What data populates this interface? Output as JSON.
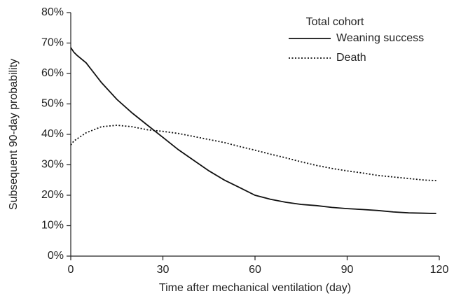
{
  "chart_data": {
    "type": "line",
    "x_label": "Time after mechanical ventilation (day)",
    "y_label": "Subsequent 90-day probability",
    "legend_title": "Total cohort",
    "legend_position": "upper right",
    "x": [
      0,
      1,
      2,
      5,
      10,
      15,
      20,
      25,
      30,
      35,
      40,
      45,
      50,
      55,
      60,
      65,
      70,
      75,
      80,
      85,
      90,
      95,
      100,
      105,
      110,
      115,
      119
    ],
    "series": [
      {
        "name": "Weaning success",
        "color": "#111111",
        "dash": "solid",
        "values": [
          68.5,
          67,
          66,
          63.5,
          57,
          51.5,
          47,
          43,
          39,
          35,
          31.5,
          28,
          25,
          22.5,
          20,
          18.7,
          17.7,
          17,
          16.6,
          16,
          15.6,
          15.3,
          15,
          14.5,
          14.2,
          14.1,
          14
        ]
      },
      {
        "name": "Death",
        "color": "#111111",
        "dash": "dotted",
        "values": [
          36.5,
          37.8,
          38.5,
          40.5,
          42.5,
          43,
          42.5,
          41.5,
          41,
          40.3,
          39.3,
          38.3,
          37.3,
          36,
          34.8,
          33.5,
          32.3,
          31,
          29.8,
          28.8,
          28,
          27.3,
          26.5,
          26,
          25.5,
          25,
          24.8
        ]
      }
    ],
    "xlim": [
      0,
      120
    ],
    "xticks": [
      0,
      30,
      60,
      90,
      120
    ],
    "ylim": [
      0,
      80
    ],
    "yticks": [
      {
        "value": 0,
        "label": "0%"
      },
      {
        "value": 10,
        "label": "10%"
      },
      {
        "value": 20,
        "label": "20%"
      },
      {
        "value": 30,
        "label": "30%"
      },
      {
        "value": 40,
        "label": "40%"
      },
      {
        "value": 50,
        "label": "50%"
      },
      {
        "value": 60,
        "label": "60%"
      },
      {
        "value": 70,
        "label": "70%"
      },
      {
        "value": 80,
        "label": "80%"
      }
    ],
    "grid": false
  }
}
